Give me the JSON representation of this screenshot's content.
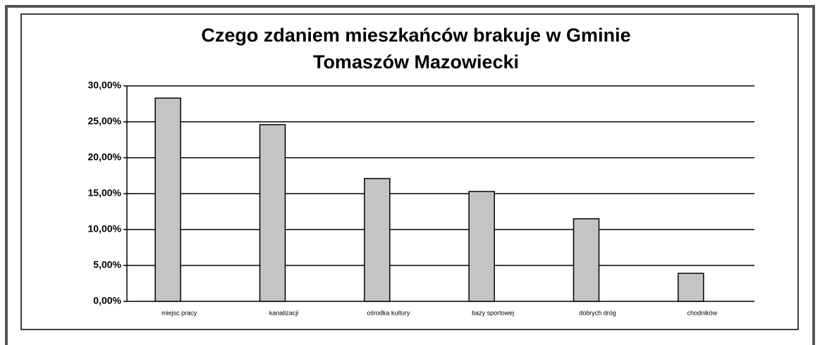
{
  "chart_data": {
    "type": "bar",
    "title": [
      "Czego zdaniem mieszkańców brakuje w Gminie",
      "Tomaszów Mazowiecki"
    ],
    "categories": [
      "miejsc pracy",
      "kanalizacji",
      "ośrodka kultury",
      "bazy sportowej",
      "dobrych dróg",
      "chodników"
    ],
    "values": [
      28.3,
      24.6,
      17.1,
      15.3,
      11.5,
      3.9
    ],
    "color": "#c4c4c4",
    "ylim": [
      0,
      30
    ],
    "yticks": [
      {
        "value": 0,
        "label": "0,00%"
      },
      {
        "value": 5,
        "label": "5,00%"
      },
      {
        "value": 10,
        "label": "10,00%"
      },
      {
        "value": 15,
        "label": "15,00%"
      },
      {
        "value": 20,
        "label": "20,00%"
      },
      {
        "value": 25,
        "label": "25,00%"
      },
      {
        "value": 30,
        "label": "30,00%"
      }
    ],
    "grid": true
  }
}
